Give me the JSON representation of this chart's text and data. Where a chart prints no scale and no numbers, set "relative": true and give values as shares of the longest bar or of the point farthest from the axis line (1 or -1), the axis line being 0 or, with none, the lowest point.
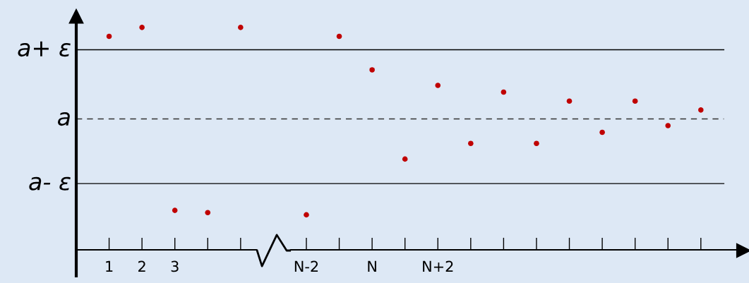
{
  "chart_data": {
    "type": "scatter",
    "relative": true,
    "marker": "circle",
    "categories": [
      "1",
      "2",
      "3",
      null,
      null,
      null,
      "N-2",
      null,
      "N",
      null,
      "N+2",
      null,
      null,
      null,
      null,
      null,
      null,
      null,
      null
    ],
    "series": [
      {
        "color": "#c00000",
        "values": [
          0.96,
          1.0,
          0.18,
          0.17,
          1.0,
          null,
          0.16,
          0.96,
          0.81,
          0.41,
          0.74,
          0.48,
          0.71,
          0.48,
          0.67,
          0.53,
          0.67,
          0.56,
          0.63
        ]
      }
    ],
    "ref_lines": [
      {
        "axis": "y",
        "value": 0.9,
        "label": "a+ ε",
        "color": "#000000",
        "line_style": "solid"
      },
      {
        "axis": "y",
        "value": 0.59,
        "label": "a",
        "color": "#333333",
        "line_style": "dashed"
      },
      {
        "axis": "y",
        "value": 0.3,
        "label": "a- ε",
        "color": "#000000",
        "line_style": "solid"
      }
    ]
  }
}
